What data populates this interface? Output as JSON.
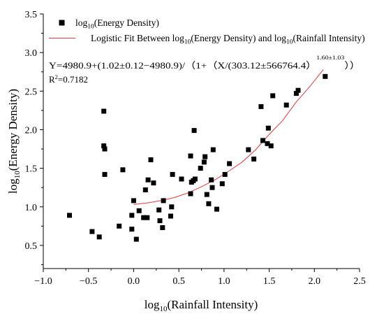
{
  "chart_data": {
    "type": "scatter",
    "xlabel": "log10(Rainfall Intensity)",
    "ylabel": "log10(Energy Density)",
    "xlim": [
      -1.0,
      2.5
    ],
    "ylim": [
      0.2,
      3.5
    ],
    "xticks": [
      -1.0,
      -0.5,
      0.0,
      0.5,
      1.0,
      1.5,
      2.0,
      2.5
    ],
    "yticks": [
      0.5,
      1.0,
      1.5,
      2.0,
      2.5,
      3.0,
      3.5
    ],
    "xtick_labels": [
      "−1.0",
      "−0.5",
      "0.0",
      "0.5",
      "1.0",
      "1.5",
      "2.0",
      "2.5"
    ],
    "ytick_labels": [
      "0.5",
      "1.0",
      "1.5",
      "2.0",
      "2.5",
      "3.0",
      "3.5"
    ],
    "grid": false,
    "legend_position": "top-left",
    "series": [
      {
        "name": "log10(Energy Density)",
        "kind": "scatter",
        "marker": "square",
        "color": "#000000",
        "points": [
          [
            -0.71,
            0.89
          ],
          [
            -0.46,
            0.68
          ],
          [
            -0.38,
            0.61
          ],
          [
            -0.33,
            2.24
          ],
          [
            -0.33,
            1.79
          ],
          [
            -0.32,
            1.75
          ],
          [
            -0.32,
            1.42
          ],
          [
            -0.16,
            0.75
          ],
          [
            -0.12,
            1.48
          ],
          [
            -0.02,
            0.89
          ],
          [
            -0.02,
            0.71
          ],
          [
            0.0,
            1.08
          ],
          [
            0.03,
            0.58
          ],
          [
            0.06,
            0.95
          ],
          [
            0.11,
            0.86
          ],
          [
            0.13,
            1.22
          ],
          [
            0.15,
            0.86
          ],
          [
            0.16,
            1.35
          ],
          [
            0.19,
            1.61
          ],
          [
            0.22,
            1.31
          ],
          [
            0.28,
            0.96
          ],
          [
            0.29,
            0.82
          ],
          [
            0.32,
            0.73
          ],
          [
            0.33,
            1.08
          ],
          [
            0.41,
            0.88
          ],
          [
            0.42,
            1.0
          ],
          [
            0.43,
            1.42
          ],
          [
            0.53,
            1.36
          ],
          [
            0.63,
            1.17
          ],
          [
            0.63,
            1.66
          ],
          [
            0.64,
            1.32
          ],
          [
            0.66,
            1.34
          ],
          [
            0.67,
            1.99
          ],
          [
            0.68,
            1.36
          ],
          [
            0.74,
            1.5
          ],
          [
            0.78,
            1.58
          ],
          [
            0.79,
            1.65
          ],
          [
            0.81,
            1.16
          ],
          [
            0.83,
            1.04
          ],
          [
            0.86,
            1.35
          ],
          [
            0.87,
            1.25
          ],
          [
            0.88,
            1.74
          ],
          [
            0.92,
            0.97
          ],
          [
            0.98,
            1.3
          ],
          [
            1.01,
            1.42
          ],
          [
            1.06,
            1.56
          ],
          [
            1.27,
            1.74
          ],
          [
            1.33,
            1.62
          ],
          [
            1.41,
            2.3
          ],
          [
            1.43,
            1.86
          ],
          [
            1.48,
            1.82
          ],
          [
            1.49,
            2.02
          ],
          [
            1.52,
            1.79
          ],
          [
            1.54,
            2.44
          ],
          [
            1.69,
            2.32
          ],
          [
            1.8,
            2.47
          ],
          [
            1.82,
            2.51
          ],
          [
            2.12,
            2.69
          ]
        ]
      },
      {
        "name": "Logistic Fit Between log10(Energy Density) and log10(Rainfall Intensity)",
        "kind": "line",
        "color": "#e8393a",
        "points": [
          [
            0.0,
            1.03
          ],
          [
            0.15,
            1.05
          ],
          [
            0.3,
            1.08
          ],
          [
            0.45,
            1.12
          ],
          [
            0.6,
            1.18
          ],
          [
            0.75,
            1.26
          ],
          [
            0.9,
            1.35
          ],
          [
            1.05,
            1.46
          ],
          [
            1.2,
            1.58
          ],
          [
            1.35,
            1.74
          ],
          [
            1.5,
            1.94
          ],
          [
            1.65,
            2.12
          ],
          [
            1.8,
            2.36
          ],
          [
            1.95,
            2.56
          ],
          [
            2.1,
            2.78
          ]
        ]
      }
    ],
    "legend_entries": [
      {
        "prefix": "log",
        "sub": "10",
        "suffix": "(Energy Density)"
      },
      {
        "text_1": "Logistic Fit Between log",
        "sub_1": "10",
        "text_2": "(Energy Density) and log",
        "sub_2": "10",
        "text_3": "(Rainfall Intensity)"
      }
    ],
    "axis_title_parts": {
      "x": {
        "prefix": "log",
        "sub": "10",
        "suffix": "(Rainfall Intensity)"
      },
      "y": {
        "prefix": "log",
        "sub": "10",
        "suffix": "(Energy Density)"
      }
    },
    "annotations": {
      "equation": "Y=4980.9+(1.02±0.12−4980.9)/（1+（X/(303.12±566764.4）",
      "equation_exponent": "1.60±1.03",
      "equation_close": "））",
      "r2_prefix": "R",
      "r2_sup": "2",
      "r2_suffix": "=0.7182"
    }
  }
}
